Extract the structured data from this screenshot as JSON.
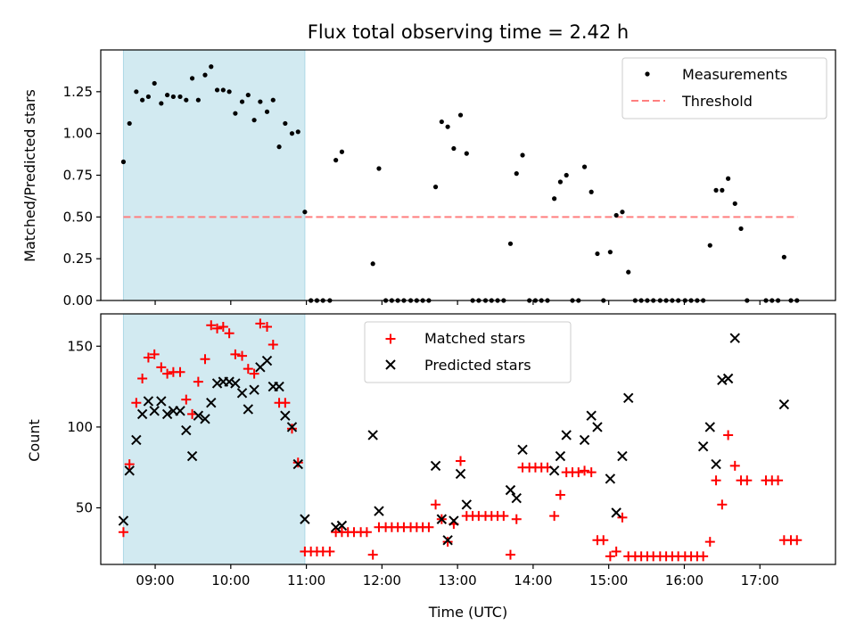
{
  "chart_data": [
    {
      "type": "scatter",
      "title": "Flux total observing time = 2.42 h",
      "xlabel": "",
      "ylabel": "Matched/Predicted stars",
      "xlim": [
        8.28,
        18.0
      ],
      "ylim": [
        0.0,
        1.5
      ],
      "yticks": [
        0.0,
        0.25,
        0.5,
        0.75,
        1.0,
        1.25
      ],
      "ytick_labels": [
        "0.00",
        "0.25",
        "0.50",
        "0.75",
        "1.00",
        "1.25"
      ],
      "shaded_span": [
        8.58,
        10.98
      ],
      "shaded_color": "#add8e6",
      "legend": {
        "location": "upper-right",
        "entries": [
          "Measurements",
          "Threshold"
        ]
      },
      "threshold": {
        "name": "Threshold",
        "value": 0.5,
        "x_range": [
          8.58,
          17.5
        ],
        "color": "#ff7f7f"
      },
      "series": [
        {
          "name": "Measurements",
          "marker": "dot",
          "color": "#000000",
          "x": [
            8.58,
            8.66,
            8.75,
            8.83,
            8.91,
            8.99,
            9.08,
            9.16,
            9.24,
            9.33,
            9.41,
            9.49,
            9.57,
            9.66,
            9.74,
            9.82,
            9.9,
            9.98,
            10.06,
            10.15,
            10.23,
            10.31,
            10.39,
            10.48,
            10.56,
            10.64,
            10.72,
            10.81,
            10.89,
            10.98,
            11.06,
            11.14,
            11.22,
            11.31,
            11.39,
            11.47,
            11.88,
            11.96,
            12.05,
            12.13,
            12.21,
            12.29,
            12.38,
            12.46,
            12.54,
            12.62,
            12.71,
            12.79,
            12.87,
            12.95,
            13.04,
            13.12,
            13.2,
            13.28,
            13.37,
            13.45,
            13.53,
            13.61,
            13.7,
            13.78,
            13.86,
            13.95,
            14.03,
            14.11,
            14.19,
            14.28,
            14.36,
            14.44,
            14.52,
            14.6,
            14.68,
            14.77,
            14.85,
            14.93,
            15.02,
            15.1,
            15.18,
            15.26,
            15.35,
            15.43,
            15.51,
            15.59,
            15.68,
            15.76,
            15.84,
            15.92,
            16.01,
            16.09,
            16.17,
            16.25,
            16.34,
            16.42,
            16.5,
            16.58,
            16.67,
            16.75,
            16.83,
            17.08,
            17.16,
            17.24,
            17.32,
            17.41,
            17.49
          ],
          "y": [
            0.83,
            1.06,
            1.25,
            1.2,
            1.22,
            1.3,
            1.18,
            1.23,
            1.22,
            1.22,
            1.2,
            1.33,
            1.2,
            1.35,
            1.4,
            1.26,
            1.26,
            1.25,
            1.12,
            1.19,
            1.23,
            1.08,
            1.19,
            1.13,
            1.2,
            0.92,
            1.06,
            1.0,
            1.01,
            0.53,
            0.0,
            0.0,
            0.0,
            0.0,
            0.84,
            0.89,
            0.22,
            0.79,
            0.0,
            0.0,
            0.0,
            0.0,
            0.0,
            0.0,
            0.0,
            0.0,
            0.68,
            1.07,
            1.04,
            0.91,
            1.11,
            0.88,
            0.0,
            0.0,
            0.0,
            0.0,
            0.0,
            0.0,
            0.34,
            0.76,
            0.87,
            0.0,
            0.0,
            0.0,
            0.0,
            0.61,
            0.71,
            0.75,
            0.0,
            0.0,
            0.8,
            0.65,
            0.28,
            0.0,
            0.29,
            0.51,
            0.53,
            0.17,
            0.0,
            0.0,
            0.0,
            0.0,
            0.0,
            0.0,
            0.0,
            0.0,
            0.0,
            0.0,
            0.0,
            0.0,
            0.33,
            0.66,
            0.66,
            0.73,
            0.58,
            0.43,
            0.0,
            0.0,
            0.0,
            0.0,
            0.26,
            0.0,
            0.0
          ]
        }
      ]
    },
    {
      "type": "scatter",
      "title": "",
      "xlabel": "Time (UTC)",
      "ylabel": "Count",
      "xlim": [
        8.28,
        18.0
      ],
      "ylim": [
        15,
        170
      ],
      "yticks": [
        50,
        100,
        150
      ],
      "ytick_labels": [
        "50",
        "100",
        "150"
      ],
      "xticks": [
        9,
        10,
        11,
        12,
        13,
        14,
        15,
        16,
        17
      ],
      "xtick_labels": [
        "09:00",
        "10:00",
        "11:00",
        "12:00",
        "13:00",
        "14:00",
        "15:00",
        "16:00",
        "17:00"
      ],
      "shaded_span": [
        8.58,
        10.98
      ],
      "shaded_color": "#add8e6",
      "legend": {
        "location": "upper-center",
        "entries": [
          "Matched stars",
          "Predicted stars"
        ]
      },
      "series": [
        {
          "name": "Matched stars",
          "marker": "plus",
          "color": "#ff0000",
          "x": [
            8.58,
            8.66,
            8.75,
            8.83,
            8.91,
            8.99,
            9.08,
            9.16,
            9.24,
            9.33,
            9.41,
            9.49,
            9.57,
            9.66,
            9.74,
            9.82,
            9.9,
            9.98,
            10.06,
            10.15,
            10.23,
            10.31,
            10.39,
            10.48,
            10.56,
            10.64,
            10.72,
            10.81,
            10.89,
            10.98,
            11.06,
            11.14,
            11.22,
            11.31,
            11.39,
            11.47,
            11.55,
            11.63,
            11.72,
            11.8,
            11.88,
            11.96,
            12.05,
            12.13,
            12.21,
            12.29,
            12.38,
            12.46,
            12.54,
            12.62,
            12.71,
            12.79,
            12.87,
            12.95,
            13.04,
            13.12,
            13.2,
            13.28,
            13.37,
            13.45,
            13.53,
            13.61,
            13.7,
            13.78,
            13.86,
            13.95,
            14.03,
            14.11,
            14.19,
            14.28,
            14.36,
            14.44,
            14.52,
            14.6,
            14.68,
            14.77,
            14.85,
            14.93,
            15.02,
            15.1,
            15.18,
            15.26,
            15.35,
            15.43,
            15.51,
            15.59,
            15.68,
            15.76,
            15.84,
            15.92,
            16.01,
            16.09,
            16.17,
            16.25,
            16.34,
            16.42,
            16.5,
            16.58,
            16.67,
            16.75,
            16.83,
            17.08,
            17.16,
            17.24,
            17.32,
            17.41,
            17.49
          ],
          "y": [
            35,
            77,
            115,
            130,
            143,
            145,
            137,
            133,
            134,
            134,
            117,
            108,
            128,
            142,
            163,
            161,
            162,
            158,
            145,
            144,
            136,
            133,
            164,
            162,
            151,
            115,
            115,
            99,
            78,
            23,
            23,
            23,
            23,
            23,
            35,
            35,
            35,
            35,
            35,
            35,
            21,
            38,
            38,
            38,
            38,
            38,
            38,
            38,
            38,
            38,
            52,
            43,
            29,
            40,
            79,
            45,
            45,
            45,
            45,
            45,
            45,
            45,
            21,
            43,
            75,
            75,
            75,
            75,
            75,
            45,
            58,
            72,
            72,
            72,
            73,
            72,
            30,
            30,
            20,
            23,
            44,
            20,
            20,
            20,
            20,
            20,
            20,
            20,
            20,
            20,
            20,
            20,
            20,
            20,
            29,
            67,
            52,
            95,
            76,
            67,
            67,
            67,
            67,
            67,
            30,
            30,
            30
          ]
        },
        {
          "name": "Predicted stars",
          "marker": "x",
          "color": "#000000",
          "x": [
            8.58,
            8.66,
            8.75,
            8.83,
            8.91,
            8.99,
            9.08,
            9.16,
            9.24,
            9.33,
            9.41,
            9.49,
            9.57,
            9.66,
            9.74,
            9.82,
            9.9,
            9.98,
            10.06,
            10.15,
            10.23,
            10.31,
            10.39,
            10.48,
            10.56,
            10.64,
            10.72,
            10.81,
            10.89,
            10.98,
            11.39,
            11.47,
            11.88,
            11.96,
            12.71,
            12.79,
            12.87,
            12.95,
            13.04,
            13.12,
            13.7,
            13.78,
            13.86,
            14.28,
            14.36,
            14.44,
            14.68,
            14.77,
            14.85,
            15.02,
            15.1,
            15.18,
            15.26,
            16.25,
            16.34,
            16.42,
            16.5,
            16.58,
            16.67,
            17.32
          ],
          "y": [
            42,
            73,
            92,
            108,
            116,
            110,
            116,
            108,
            110,
            110,
            98,
            82,
            107,
            105,
            115,
            127,
            128,
            128,
            127,
            121,
            111,
            123,
            137,
            141,
            125,
            125,
            107,
            100,
            77,
            43,
            38,
            39,
            95,
            48,
            76,
            43,
            30,
            42,
            71,
            52,
            61,
            56,
            86,
            73,
            82,
            95,
            92,
            107,
            100,
            68,
            47,
            82,
            118,
            88,
            100,
            77,
            129,
            130,
            155,
            114
          ]
        }
      ]
    }
  ]
}
